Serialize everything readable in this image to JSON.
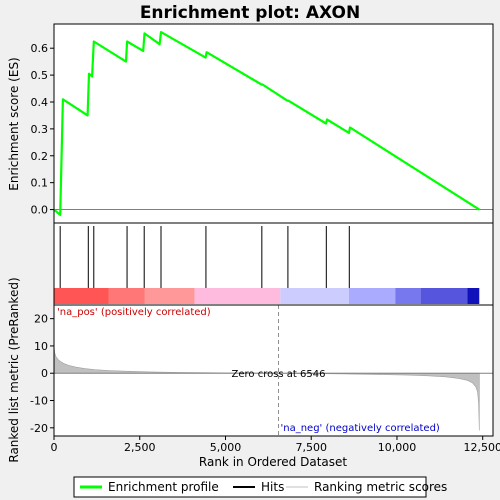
{
  "chart_data": {
    "type": "line",
    "title": "Enrichment plot: AXON",
    "panels": {
      "enrichment": {
        "ylabel": "Enrichment score (ES)",
        "ylim": [
          -0.05,
          0.69
        ],
        "yticks": [
          0.0,
          0.1,
          0.2,
          0.3,
          0.4,
          0.5,
          0.6
        ],
        "ytick_labels": [
          "0.0",
          "0.1",
          "0.2",
          "0.3",
          "0.4",
          "0.5",
          "0.6"
        ],
        "series": [
          {
            "name": "Enrichment profile",
            "color": "#00ff00",
            "x": [
              0,
              180,
              260,
              980,
              1020,
              1110,
              1160,
              2100,
              2130,
              2600,
              2640,
              3080,
              3120,
              4420,
              4450,
              6050,
              6080,
              6800,
              6830,
              7930,
              7960,
              8600,
              8630,
              12400
            ],
            "y": [
              0.0,
              -0.02,
              0.41,
              0.35,
              0.505,
              0.495,
              0.625,
              0.55,
              0.625,
              0.59,
              0.655,
              0.615,
              0.66,
              0.565,
              0.585,
              0.465,
              0.465,
              0.405,
              0.405,
              0.32,
              0.335,
              0.285,
              0.305,
              0.0
            ]
          }
        ]
      },
      "hits": {
        "positions": [
          180,
          1000,
          1160,
          2130,
          2630,
          3120,
          4430,
          6060,
          6820,
          7940,
          8610
        ],
        "color": "#000000"
      },
      "colorbar": {
        "segments": [
          {
            "x0": 0,
            "x1": 1600,
            "color": "#ff5555"
          },
          {
            "x0": 1600,
            "x1": 2650,
            "color": "#ff7777"
          },
          {
            "x0": 2650,
            "x1": 4100,
            "color": "#ff9999"
          },
          {
            "x0": 4100,
            "x1": 6600,
            "color": "#ffbbdd"
          },
          {
            "x0": 6600,
            "x1": 8600,
            "color": "#ccccff"
          },
          {
            "x0": 8600,
            "x1": 9950,
            "color": "#aaaaff"
          },
          {
            "x0": 9950,
            "x1": 10700,
            "color": "#7777ee"
          },
          {
            "x0": 10700,
            "x1": 12050,
            "color": "#5555dd"
          },
          {
            "x0": 12050,
            "x1": 12400,
            "color": "#1111bb"
          }
        ]
      },
      "ranked_metric": {
        "ylabel": "Ranked list metric (PreRanked)",
        "xlabel": "Rank in Ordered Dataset",
        "xlim": [
          0,
          12800
        ],
        "ylim": [
          -23,
          25
        ],
        "xticks": [
          0,
          2500,
          5000,
          7500,
          10000,
          12500
        ],
        "xtick_labels": [
          "0",
          "2,500",
          "5,000",
          "7,500",
          "10,000",
          "12,500"
        ],
        "yticks": [
          20,
          10,
          0,
          -10,
          -20
        ],
        "ytick_labels": [
          "20",
          "10",
          "0",
          "-10",
          "-20"
        ],
        "zero_cross": 6546,
        "zero_cross_label": "Zero cross at 6546",
        "pos_label": "'na_pos' (positively correlated)",
        "neg_label": "'na_neg' (negatively correlated)",
        "fill_color": "#c0c0c0",
        "curve_x": [
          0,
          20,
          60,
          120,
          200,
          300,
          450,
          650,
          900,
          1200,
          1600,
          2100,
          2800,
          3600,
          4500,
          5500,
          6546,
          7500,
          8500,
          9500,
          10300,
          10900,
          11400,
          11800,
          12050,
          12200,
          12300,
          12350,
          12380,
          12400
        ],
        "curve_y": [
          10,
          7.5,
          6,
          5,
          4.2,
          3.5,
          2.8,
          2.2,
          1.7,
          1.3,
          1.0,
          0.75,
          0.5,
          0.3,
          0.18,
          0.08,
          0,
          -0.15,
          -0.3,
          -0.5,
          -0.7,
          -0.95,
          -1.3,
          -1.9,
          -2.6,
          -3.5,
          -5,
          -7,
          -11,
          -21
        ]
      }
    },
    "legend": {
      "placement": "bottom",
      "items": [
        {
          "label": "Enrichment profile",
          "color": "#00ff00"
        },
        {
          "label": "Hits",
          "color": "#000000"
        },
        {
          "label": "Ranking metric scores",
          "color": "#c0c0c0"
        }
      ]
    }
  }
}
